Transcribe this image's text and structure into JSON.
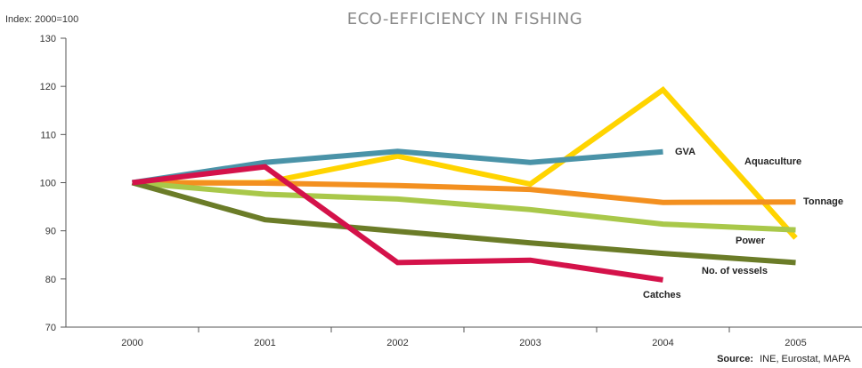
{
  "chart_data": {
    "type": "line",
    "title": "ECO-EFFICIENCY IN FISHING",
    "ylabel": "Index: 2000=100",
    "xlabel": "",
    "x": [
      "2000",
      "2001",
      "2002",
      "2003",
      "2004",
      "2005"
    ],
    "ylim": [
      70,
      130
    ],
    "yticks": [
      70,
      80,
      90,
      100,
      110,
      120,
      130
    ],
    "grid": false,
    "legend": "inline",
    "series": [
      {
        "name": "Aquaculture",
        "color": "#FFD400",
        "values": [
          100,
          100,
          105.5,
          99.7,
          119.3,
          88.5
        ]
      },
      {
        "name": "GVA",
        "color": "#4A93A8",
        "values": [
          100,
          104.2,
          106.5,
          104.2,
          106.4,
          null
        ]
      },
      {
        "name": "Tonnage",
        "color": "#F39020",
        "values": [
          100,
          99.9,
          99.4,
          98.6,
          95.9,
          96.0
        ]
      },
      {
        "name": "Power",
        "color": "#A9C84A",
        "values": [
          100,
          97.6,
          96.6,
          94.4,
          91.4,
          90.2
        ]
      },
      {
        "name": "No. of vessels",
        "color": "#6B7C28",
        "values": [
          100,
          92.3,
          89.9,
          87.5,
          85.3,
          83.4
        ]
      },
      {
        "name": "Catches",
        "color": "#D4124A",
        "values": [
          100,
          103.3,
          83.4,
          83.9,
          79.8,
          null
        ]
      }
    ],
    "source_label": "Source:",
    "source_text": "INE, Eurostat, MAPA"
  }
}
